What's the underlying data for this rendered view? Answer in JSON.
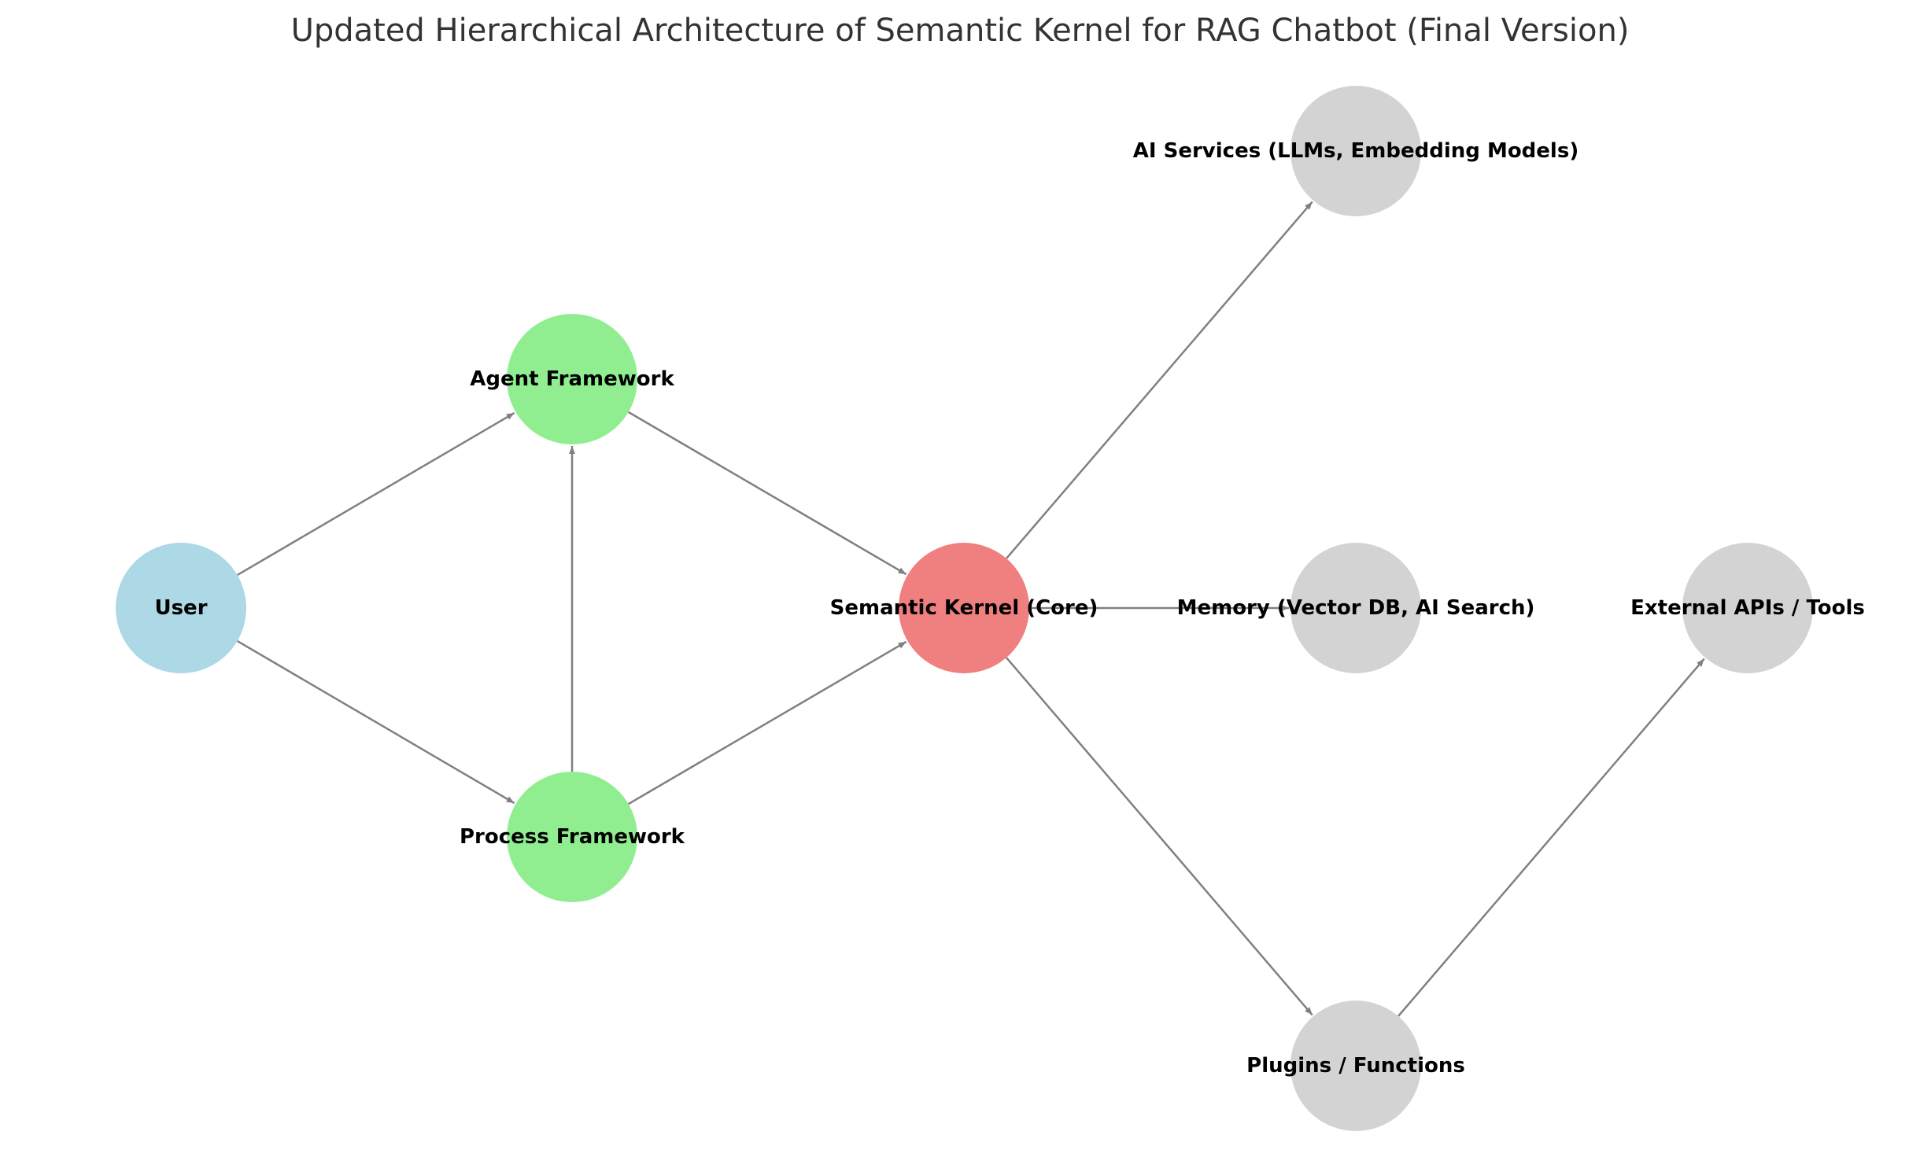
{
  "title": "Updated Hierarchical Architecture of Semantic Kernel for RAG Chatbot (Final Version)",
  "colors": {
    "user": "#add8e6",
    "framework": "#90ee90",
    "core": "#f08080",
    "resource": "#d3d3d3",
    "edge": "#808080"
  },
  "nodes": [
    {
      "id": "user",
      "label": "User",
      "group": "user"
    },
    {
      "id": "agent",
      "label": "Agent Framework",
      "group": "framework"
    },
    {
      "id": "process",
      "label": "Process Framework",
      "group": "framework"
    },
    {
      "id": "kernel",
      "label": "Semantic Kernel (Core)",
      "group": "core"
    },
    {
      "id": "ai",
      "label": "AI Services (LLMs, Embedding Models)",
      "group": "resource"
    },
    {
      "id": "memory",
      "label": "Memory (Vector DB, AI Search)",
      "group": "resource"
    },
    {
      "id": "plugins",
      "label": "Plugins / Functions",
      "group": "resource"
    },
    {
      "id": "external",
      "label": "External APIs / Tools",
      "group": "resource"
    }
  ],
  "edges": [
    {
      "from": "user",
      "to": "agent"
    },
    {
      "from": "user",
      "to": "process"
    },
    {
      "from": "process",
      "to": "agent"
    },
    {
      "from": "agent",
      "to": "kernel"
    },
    {
      "from": "process",
      "to": "kernel"
    },
    {
      "from": "kernel",
      "to": "ai"
    },
    {
      "from": "kernel",
      "to": "memory"
    },
    {
      "from": "kernel",
      "to": "plugins"
    },
    {
      "from": "plugins",
      "to": "external"
    }
  ]
}
